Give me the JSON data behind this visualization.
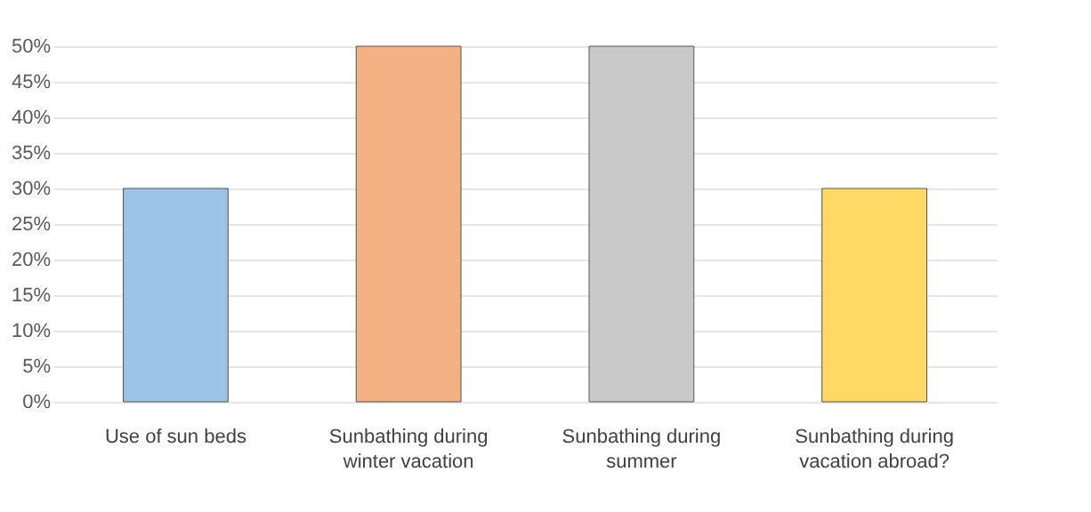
{
  "chart_data": {
    "type": "bar",
    "categories": [
      "Use of sun beds",
      "Sunbathing during winter vacation",
      "Sunbathing during summer",
      "Sunbathing during vacation abroad?"
    ],
    "values": [
      30,
      50,
      50,
      30
    ],
    "colors": [
      "#9dc3e6",
      "#f4b183",
      "#c9c9c9",
      "#ffd966"
    ],
    "ylim": [
      0,
      50
    ],
    "yticks": [
      {
        "value": 0,
        "label": "0%"
      },
      {
        "value": 5,
        "label": "5%"
      },
      {
        "value": 10,
        "label": "10%"
      },
      {
        "value": 15,
        "label": "15%"
      },
      {
        "value": 20,
        "label": "20%"
      },
      {
        "value": 25,
        "label": "25%"
      },
      {
        "value": 30,
        "label": "30%"
      },
      {
        "value": 35,
        "label": "35%"
      },
      {
        "value": 40,
        "label": "40%"
      },
      {
        "value": 45,
        "label": "45%"
      },
      {
        "value": 50,
        "label": "50%"
      }
    ],
    "grid": "y"
  }
}
